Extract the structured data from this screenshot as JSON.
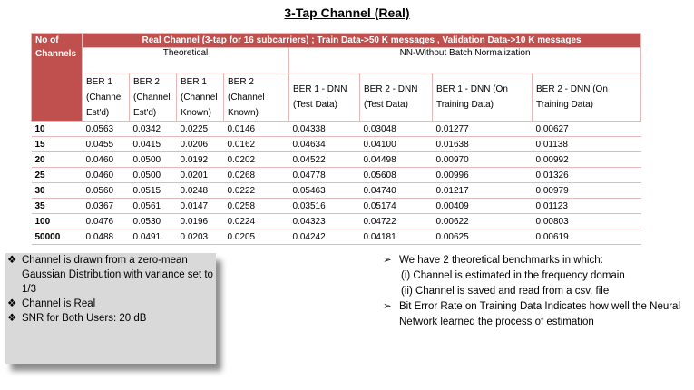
{
  "title": "3-Tap Channel (Real)",
  "table": {
    "corner_label": "No of Channels",
    "banner": "Real Channel (3-tap for 16 subcarriers) ;  Train Data->50 K messages , Validation Data->10 K messages",
    "group_theoretical": "Theoretical",
    "group_nn": "NN-Without Batch Normalization",
    "columns": [
      "BER 1 (Channel Est'd)",
      "BER 2 (Channel Est'd)",
      "BER 1 (Channel Known)",
      "BER 2 (Channel Known)",
      "BER 1 - DNN (Test Data)",
      "BER 2 - DNN (Test Data)",
      "BER 1 - DNN (On Training Data)",
      "BER 2 - DNN (On Training Data)"
    ],
    "rows": [
      {
        "label": "10",
        "values": [
          "0.0563",
          "0.0342",
          "0.0225",
          "0.0146",
          "0.04338",
          "0.03048",
          "0.01277",
          "0.00627"
        ]
      },
      {
        "label": "15",
        "values": [
          "0.0455",
          "0.0415",
          "0.0206",
          "0.0162",
          "0.04634",
          "0.04100",
          "0.01638",
          "0.01138"
        ]
      },
      {
        "label": "20",
        "values": [
          "0.0460",
          "0.0500",
          "0.0192",
          "0.0202",
          "0.04522",
          "0.04498",
          "0.00970",
          "0.00992"
        ]
      },
      {
        "label": "25",
        "values": [
          "0.0460",
          "0.0500",
          "0.0201",
          "0.0268",
          "0.04778",
          "0.05608",
          "0.00996",
          "0.01326"
        ]
      },
      {
        "label": "30",
        "values": [
          "0.0560",
          "0.0515",
          "0.0248",
          "0.0222",
          "0.05463",
          "0.04740",
          "0.01217",
          "0.00979"
        ]
      },
      {
        "label": "35",
        "values": [
          "0.0367",
          "0.0561",
          "0.0147",
          "0.0258",
          "0.03516",
          "0.05174",
          "0.00409",
          "0.01123"
        ]
      },
      {
        "label": "100",
        "values": [
          "0.0476",
          "0.0530",
          "0.0196",
          "0.0224",
          "0.04323",
          "0.04722",
          "0.00622",
          "0.00803"
        ]
      },
      {
        "label": "50000",
        "values": [
          "0.0488",
          "0.0491",
          "0.0203",
          "0.0205",
          "0.04242",
          "0.04181",
          "0.00625",
          "0.00619"
        ]
      }
    ]
  },
  "left_notes": {
    "bullet_glyph": "❖",
    "items": [
      "Channel is  drawn from a zero-mean Gaussian Distribution with variance set to 1/3",
      "Channel is Real",
      "SNR for Both Users: 20 dB"
    ]
  },
  "right_notes": {
    "bullet_glyph": "➢",
    "item1": "We have 2 theoretical benchmarks  in which:",
    "sub1": "(i) Channel is estimated in the frequency domain",
    "sub2": "(ii) Channel is saved and read from a csv. file",
    "item2": "Bit Error Rate on Training Data Indicates how well the Neural Network learned the process of estimation"
  }
}
